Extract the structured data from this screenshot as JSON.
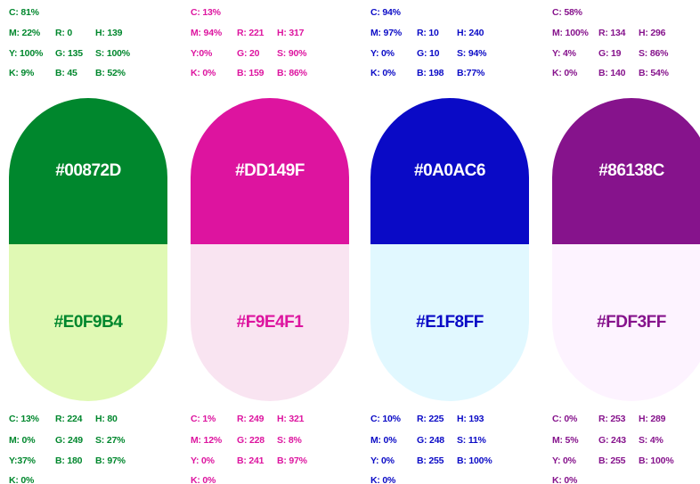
{
  "columns": [
    {
      "top": [
        [
          "C: 81%"
        ],
        [
          "M: 22%",
          "R: 0",
          "H: 139"
        ],
        [
          "Y: 100%",
          "G: 135",
          "S: 100%"
        ],
        [
          "K: 9%",
          "B: 45",
          "B: 52%"
        ]
      ],
      "dark": "#00872D",
      "light": "#E0F9B4",
      "bottom": [
        [
          "C: 13%",
          "R: 224",
          "H: 80"
        ],
        [
          "M: 0%",
          "G: 249",
          "S: 27%"
        ],
        [
          "Y:37%",
          "B: 180",
          "B: 97%"
        ],
        [
          "K: 0%"
        ]
      ]
    },
    {
      "top": [
        [
          "C: 13%"
        ],
        [
          "M: 94%",
          "R: 221",
          "H: 317"
        ],
        [
          "Y:0%",
          "G: 20",
          "S: 90%"
        ],
        [
          "K: 0%",
          "B: 159",
          "B: 86%"
        ]
      ],
      "dark": "#DD149F",
      "light": "#F9E4F1",
      "bottom": [
        [
          "C: 1%",
          "R: 249",
          "H: 321"
        ],
        [
          "M: 12%",
          "G: 228",
          "S: 8%"
        ],
        [
          "Y: 0%",
          "B: 241",
          "B: 97%"
        ],
        [
          "K: 0%"
        ]
      ]
    },
    {
      "top": [
        [
          "C: 94%"
        ],
        [
          "M: 97%",
          "R: 10",
          "H: 240"
        ],
        [
          "Y: 0%",
          "G: 10",
          "S: 94%"
        ],
        [
          "K: 0%",
          "B: 198",
          "B:77%"
        ]
      ],
      "dark": "#0A0AC6",
      "light": "#E1F8FF",
      "bottom": [
        [
          "C: 10%",
          "R: 225",
          "H: 193"
        ],
        [
          "M: 0%",
          "G: 248",
          "S: 11%"
        ],
        [
          "Y: 0%",
          "B: 255",
          "B: 100%"
        ],
        [
          "K: 0%"
        ]
      ]
    },
    {
      "top": [
        [
          "C: 58%"
        ],
        [
          "M: 100%",
          "R: 134",
          "H: 296"
        ],
        [
          "Y: 4%",
          "G: 19",
          "S: 86%"
        ],
        [
          "K: 0%",
          "B: 140",
          "B: 54%"
        ]
      ],
      "dark": "#86138C",
      "light": "#FDF3FF",
      "bottom": [
        [
          "C: 0%",
          "R: 253",
          "H: 289"
        ],
        [
          "M: 5%",
          "G: 243",
          "S: 4%"
        ],
        [
          "Y: 0%",
          "B: 255",
          "B: 100%"
        ],
        [
          "K: 0%"
        ]
      ]
    }
  ]
}
